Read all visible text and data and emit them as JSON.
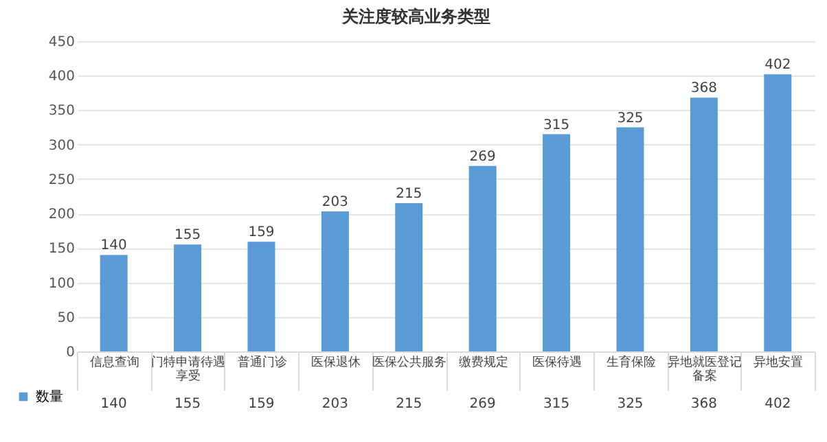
{
  "chart_data": {
    "type": "bar",
    "title": "关注度较高业务类型",
    "categories": [
      "信息查询",
      "门特申请待遇享受",
      "普通门诊",
      "医保退休",
      "医保公共服务",
      "缴费规定",
      "医保待遇",
      "生育保险",
      "异地就医登记备案",
      "异地安置"
    ],
    "series": [
      {
        "name": "数量",
        "color": "#5b9bd5",
        "values": [
          140,
          155,
          159,
          203,
          215,
          269,
          315,
          325,
          368,
          402
        ]
      }
    ],
    "value_labels": [
      "140",
      "155",
      "159",
      "203",
      "215",
      "269",
      "315",
      "325",
      "368",
      "402"
    ],
    "ylim": [
      0,
      450
    ],
    "yticks": [
      0,
      50,
      100,
      150,
      200,
      250,
      300,
      350,
      400,
      450
    ],
    "grid": "y",
    "legend": "bottom left",
    "data_labels": true
  }
}
